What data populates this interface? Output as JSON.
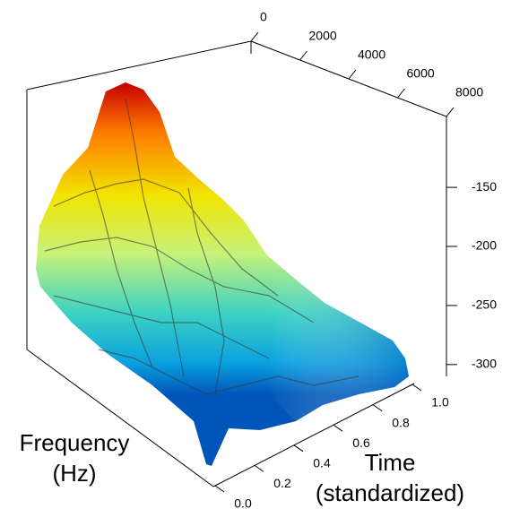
{
  "chart_data": {
    "type": "surface3d",
    "xlabel": "Frequency (Hz)",
    "ylabel": "Time (standardized)",
    "xlim": [
      0,
      8000
    ],
    "xticks": [
      0,
      2000,
      4000,
      6000,
      8000
    ],
    "ylim": [
      0,
      1
    ],
    "yticks": [
      {
        "value": 0,
        "label": "0.0"
      },
      0.2,
      0.4,
      0.6,
      0.8,
      {
        "value": 1,
        "label": "1.0"
      }
    ],
    "zlim": [
      -310,
      -90
    ],
    "zticks": [
      -150,
      -200,
      -250,
      -300
    ]
  }
}
